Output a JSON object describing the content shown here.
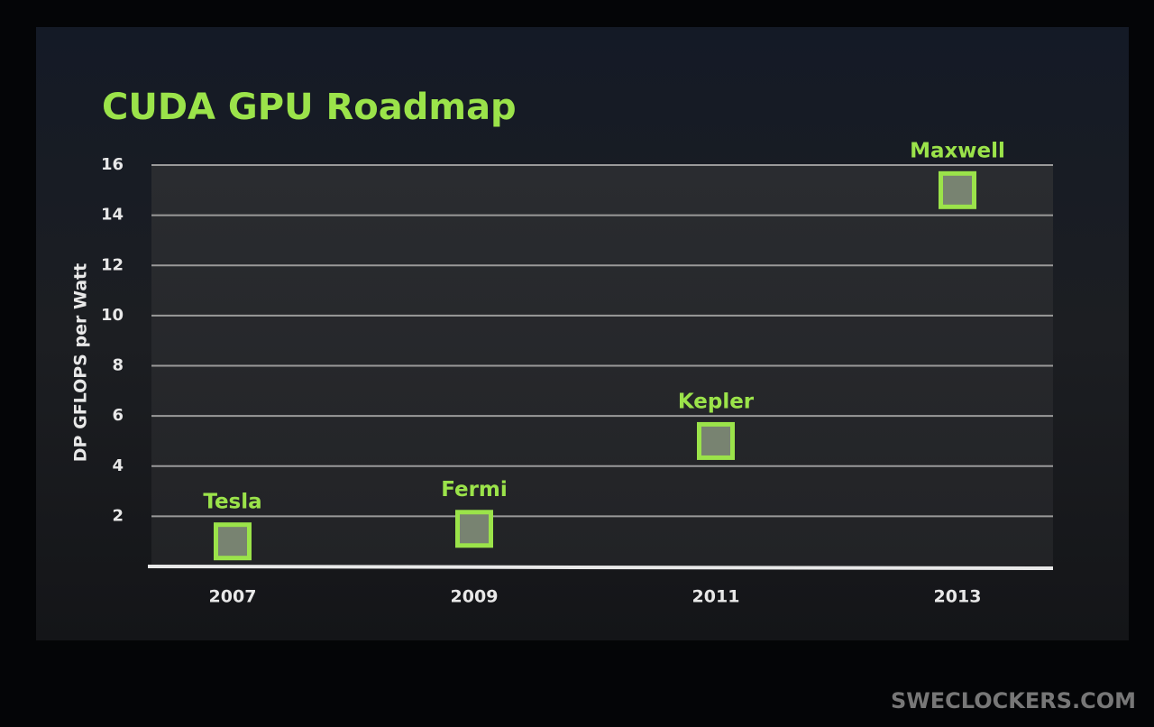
{
  "chart_data": {
    "type": "scatter",
    "title": "CUDA GPU Roadmap",
    "y_label": "DP GFLOPS per Watt",
    "categories": [
      "2007",
      "2009",
      "2011",
      "2013"
    ],
    "labels": [
      "Tesla",
      "Fermi",
      "Kepler",
      "Maxwell"
    ],
    "values": [
      1,
      1.5,
      5,
      15
    ],
    "color": "#9be34a",
    "ylim": [
      0,
      16
    ],
    "yticks": [
      2,
      4,
      6,
      8,
      10,
      12,
      14,
      16
    ],
    "grid": true
  },
  "watermark": "SWECLOCKERS.COM"
}
